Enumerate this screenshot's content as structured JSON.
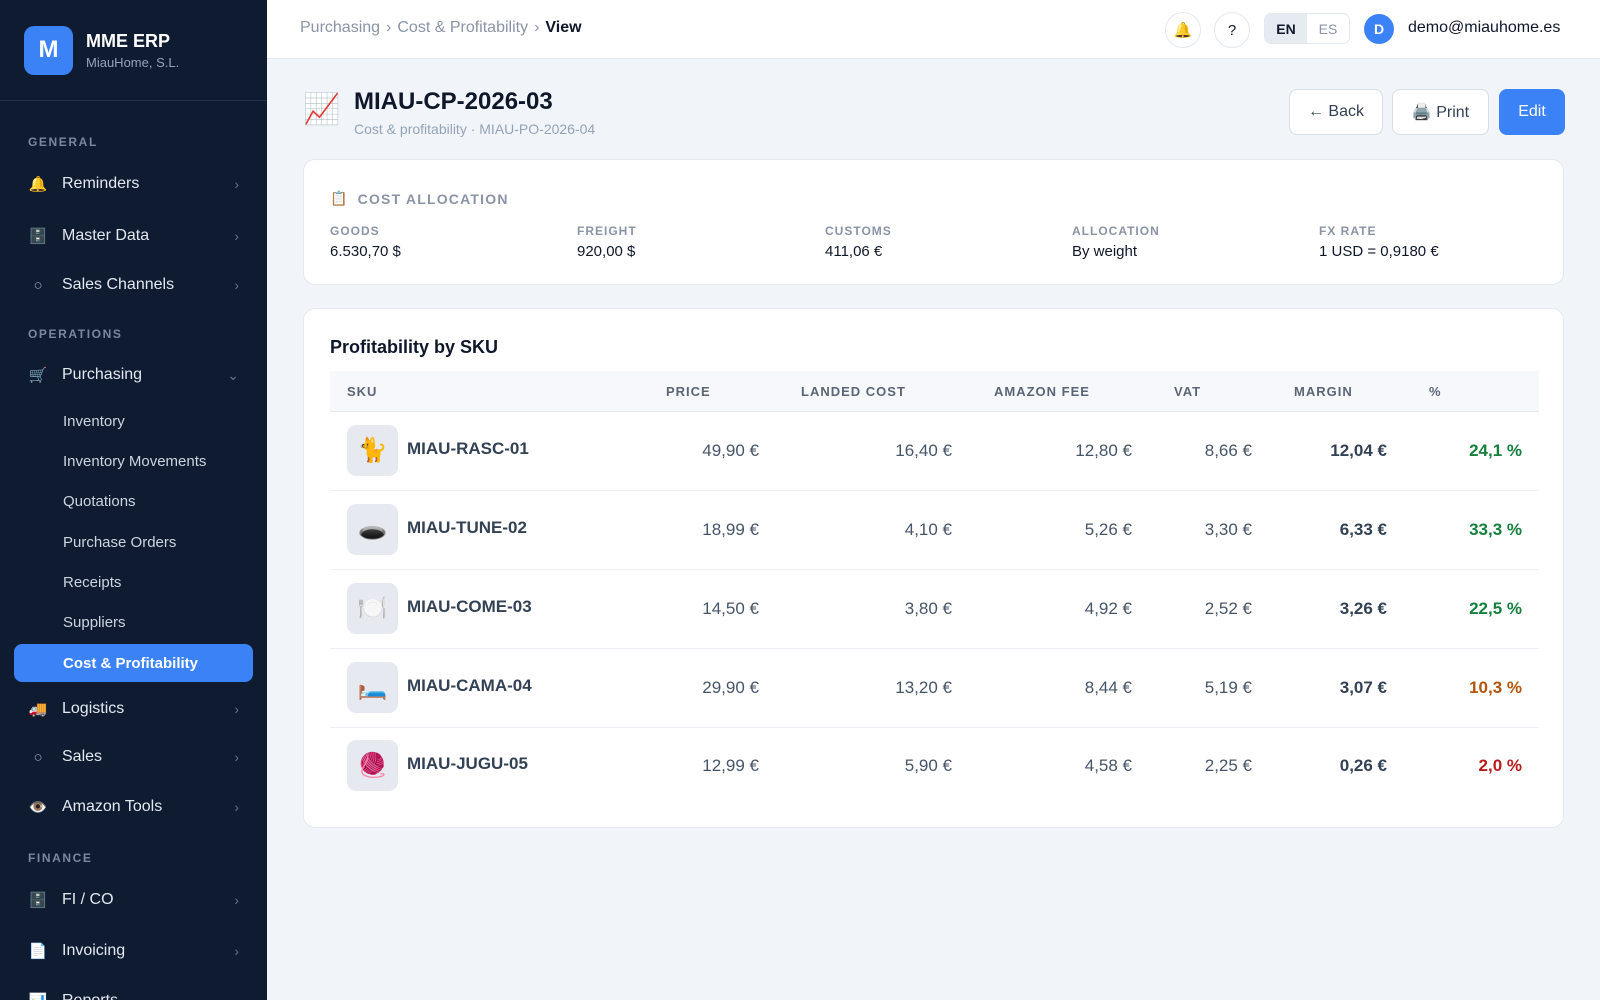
{
  "brand": {
    "logo_letter": "M",
    "name": "MME ERP",
    "company": "MiauHome, S.L."
  },
  "sidebar": {
    "sections": {
      "general": "GENERAL",
      "operations": "OPERATIONS",
      "finance": "FINANCE"
    },
    "items": [
      {
        "label": "Reminders",
        "icon": "bell-icon",
        "glyph": "🔔"
      },
      {
        "label": "Master Data",
        "icon": "cabinet-icon",
        "glyph": "🗄️"
      },
      {
        "label": "Sales Channels",
        "icon": "circle-icon",
        "glyph": "○"
      },
      {
        "label": "Purchasing",
        "icon": "cart-icon",
        "glyph": "🛒"
      },
      {
        "label": "Logistics",
        "icon": "truck-icon",
        "glyph": "🚚"
      },
      {
        "label": "Sales",
        "icon": "circle-icon",
        "glyph": "○"
      },
      {
        "label": "Amazon Tools",
        "icon": "eye-icon",
        "glyph": "👁️"
      },
      {
        "label": "FI / CO",
        "icon": "cabinet-icon",
        "glyph": "🗄️"
      },
      {
        "label": "Invoicing",
        "icon": "document-icon",
        "glyph": "📄"
      },
      {
        "label": "Reports",
        "icon": "chart-icon",
        "glyph": "📊"
      }
    ],
    "purchasing_sub": [
      "Inventory",
      "Inventory Movements",
      "Quotations",
      "Purchase Orders",
      "Receipts",
      "Suppliers",
      "Cost & Profitability"
    ],
    "active_sub": "Cost & Profitability"
  },
  "topbar": {
    "breadcrumb": [
      "Purchasing",
      "Cost & Profitability",
      "View"
    ],
    "separator": "›",
    "help": "?",
    "lang_en": "EN",
    "lang_es": "ES",
    "avatar_letter": "D",
    "email": "demo@miauhome.es"
  },
  "header": {
    "icon": "📈",
    "title": "MIAU-CP-2026-03",
    "subtitle": "Cost & profitability · MIAU-PO-2026-04",
    "back": "← Back",
    "print": "🖨️ Print",
    "edit": "Edit"
  },
  "allocation": {
    "heading": "COST ALLOCATION",
    "heading_icon": "📋",
    "fields": [
      {
        "label": "GOODS",
        "value": "6.530,70 $"
      },
      {
        "label": "FREIGHT",
        "value": "920,00 $"
      },
      {
        "label": "CUSTOMS",
        "value": "411,06 €"
      },
      {
        "label": "ALLOCATION",
        "value": "By weight"
      },
      {
        "label": "FX RATE",
        "value": "1 USD = 0,9180 €"
      }
    ]
  },
  "profitability": {
    "title": "Profitability by SKU",
    "columns": [
      "SKU",
      "PRICE",
      "LANDED COST",
      "AMAZON FEE",
      "VAT",
      "MARGIN",
      "%"
    ],
    "rows": [
      {
        "thumb": "🐈",
        "sku": "MIAU-RASC-01",
        "price": "49,90 €",
        "landed": "16,40 €",
        "fee": "12,80 €",
        "vat": "8,66 €",
        "margin": "12,04 €",
        "pct": "24,1 %",
        "pct_color": "#15803d"
      },
      {
        "thumb": "🕳️",
        "sku": "MIAU-TUNE-02",
        "price": "18,99 €",
        "landed": "4,10 €",
        "fee": "5,26 €",
        "vat": "3,30 €",
        "margin": "6,33 €",
        "pct": "33,3 %",
        "pct_color": "#15803d"
      },
      {
        "thumb": "🍽️",
        "sku": "MIAU-COME-03",
        "price": "14,50 €",
        "landed": "3,80 €",
        "fee": "4,92 €",
        "vat": "2,52 €",
        "margin": "3,26 €",
        "pct": "22,5 %",
        "pct_color": "#15803d"
      },
      {
        "thumb": "🛏️",
        "sku": "MIAU-CAMA-04",
        "price": "29,90 €",
        "landed": "13,20 €",
        "fee": "8,44 €",
        "vat": "5,19 €",
        "margin": "3,07 €",
        "pct": "10,3 %",
        "pct_color": "#b45309"
      },
      {
        "thumb": "🧶",
        "sku": "MIAU-JUGU-05",
        "price": "12,99 €",
        "landed": "5,90 €",
        "fee": "4,58 €",
        "vat": "2,25 €",
        "margin": "0,26 €",
        "pct": "2,0 %",
        "pct_color": "#b91c1c"
      }
    ]
  }
}
